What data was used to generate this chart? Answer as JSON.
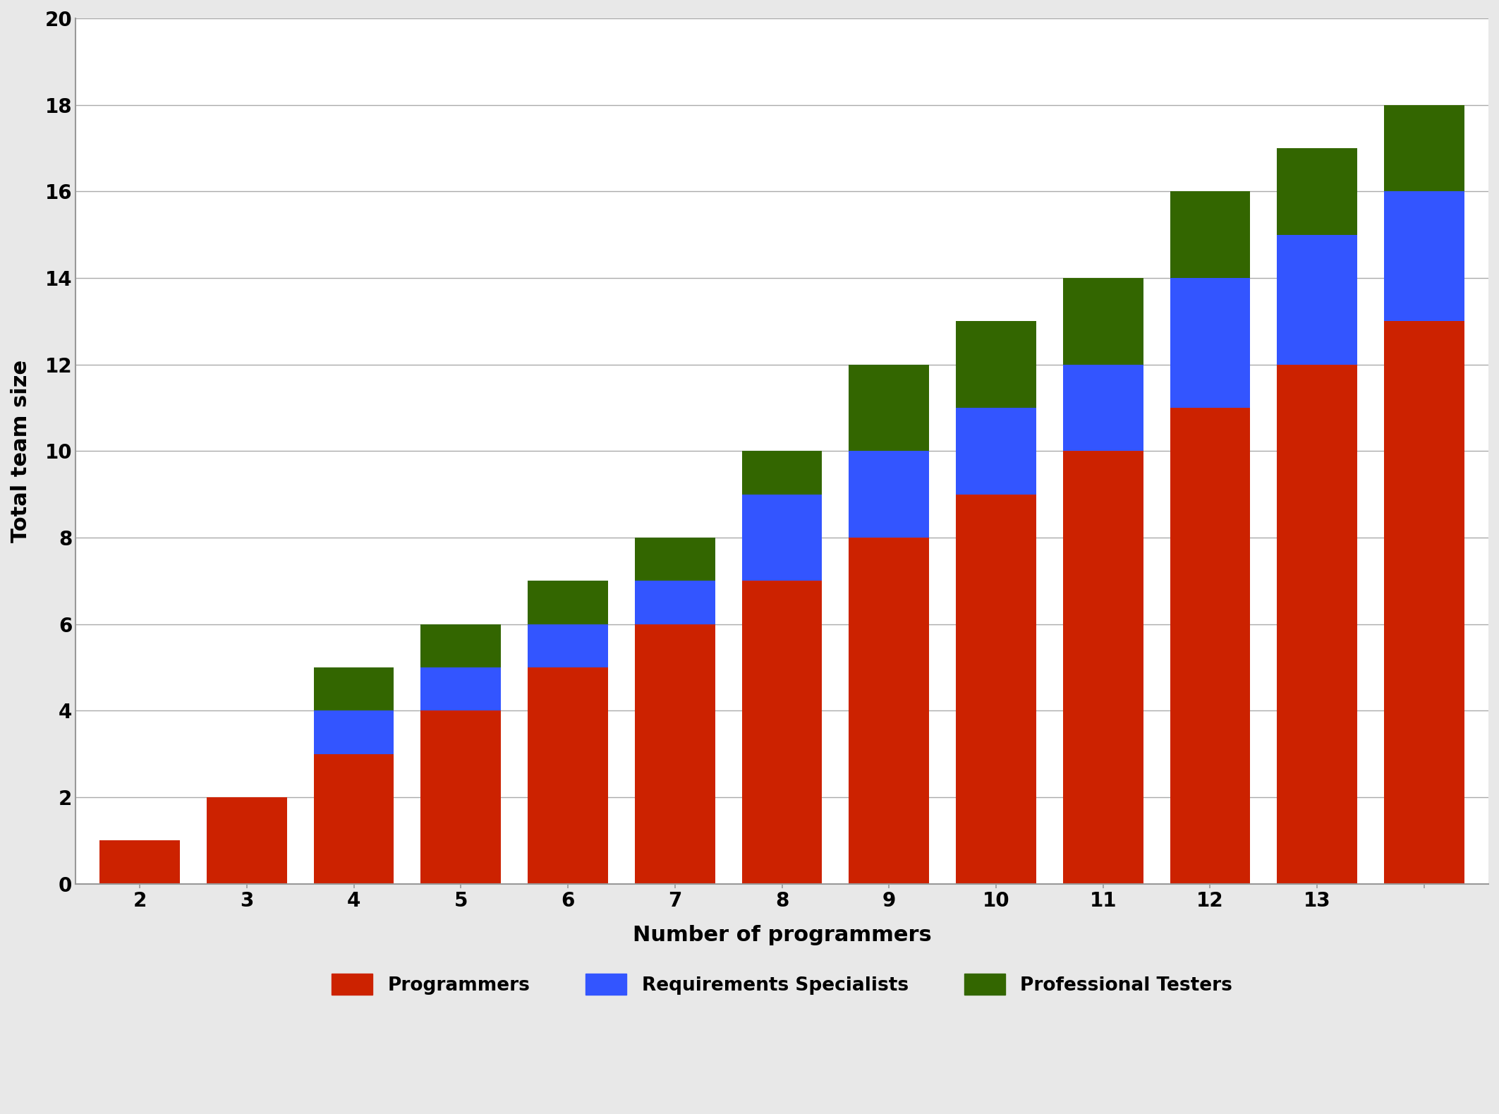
{
  "x_labels": [
    "2",
    "3",
    "4",
    "5",
    "6",
    "7",
    "8",
    "9",
    "10",
    "11",
    "12",
    "13",
    ""
  ],
  "x_values": [
    2,
    3,
    4,
    5,
    6,
    7,
    8,
    9,
    10,
    11,
    12,
    13,
    14
  ],
  "programmers": [
    1,
    2,
    3,
    4,
    5,
    6,
    7,
    8,
    9,
    10,
    11,
    12,
    13
  ],
  "requirements_specialists": [
    0,
    0,
    1,
    1,
    1,
    1,
    2,
    2,
    2,
    2,
    3,
    3,
    3
  ],
  "professional_testers": [
    0,
    0,
    1,
    1,
    1,
    1,
    1,
    2,
    2,
    2,
    2,
    2,
    2
  ],
  "color_programmers": "#cc2200",
  "color_requirements": "#3355ff",
  "color_testers": "#336600",
  "xlabel": "Number of programmers",
  "ylabel": "Total team size",
  "ylim": [
    0,
    20
  ],
  "yticks": [
    0,
    2,
    4,
    6,
    8,
    10,
    12,
    14,
    16,
    18,
    20
  ],
  "legend_programmers": "Programmers",
  "legend_requirements": "Requirements Specialists",
  "legend_testers": "Professional Testers",
  "bar_width": 0.75,
  "figure_bg": "#e8e8e8",
  "plot_bg": "#ffffff",
  "xlabel_fontsize": 22,
  "ylabel_fontsize": 22,
  "tick_fontsize": 20,
  "legend_fontsize": 19
}
